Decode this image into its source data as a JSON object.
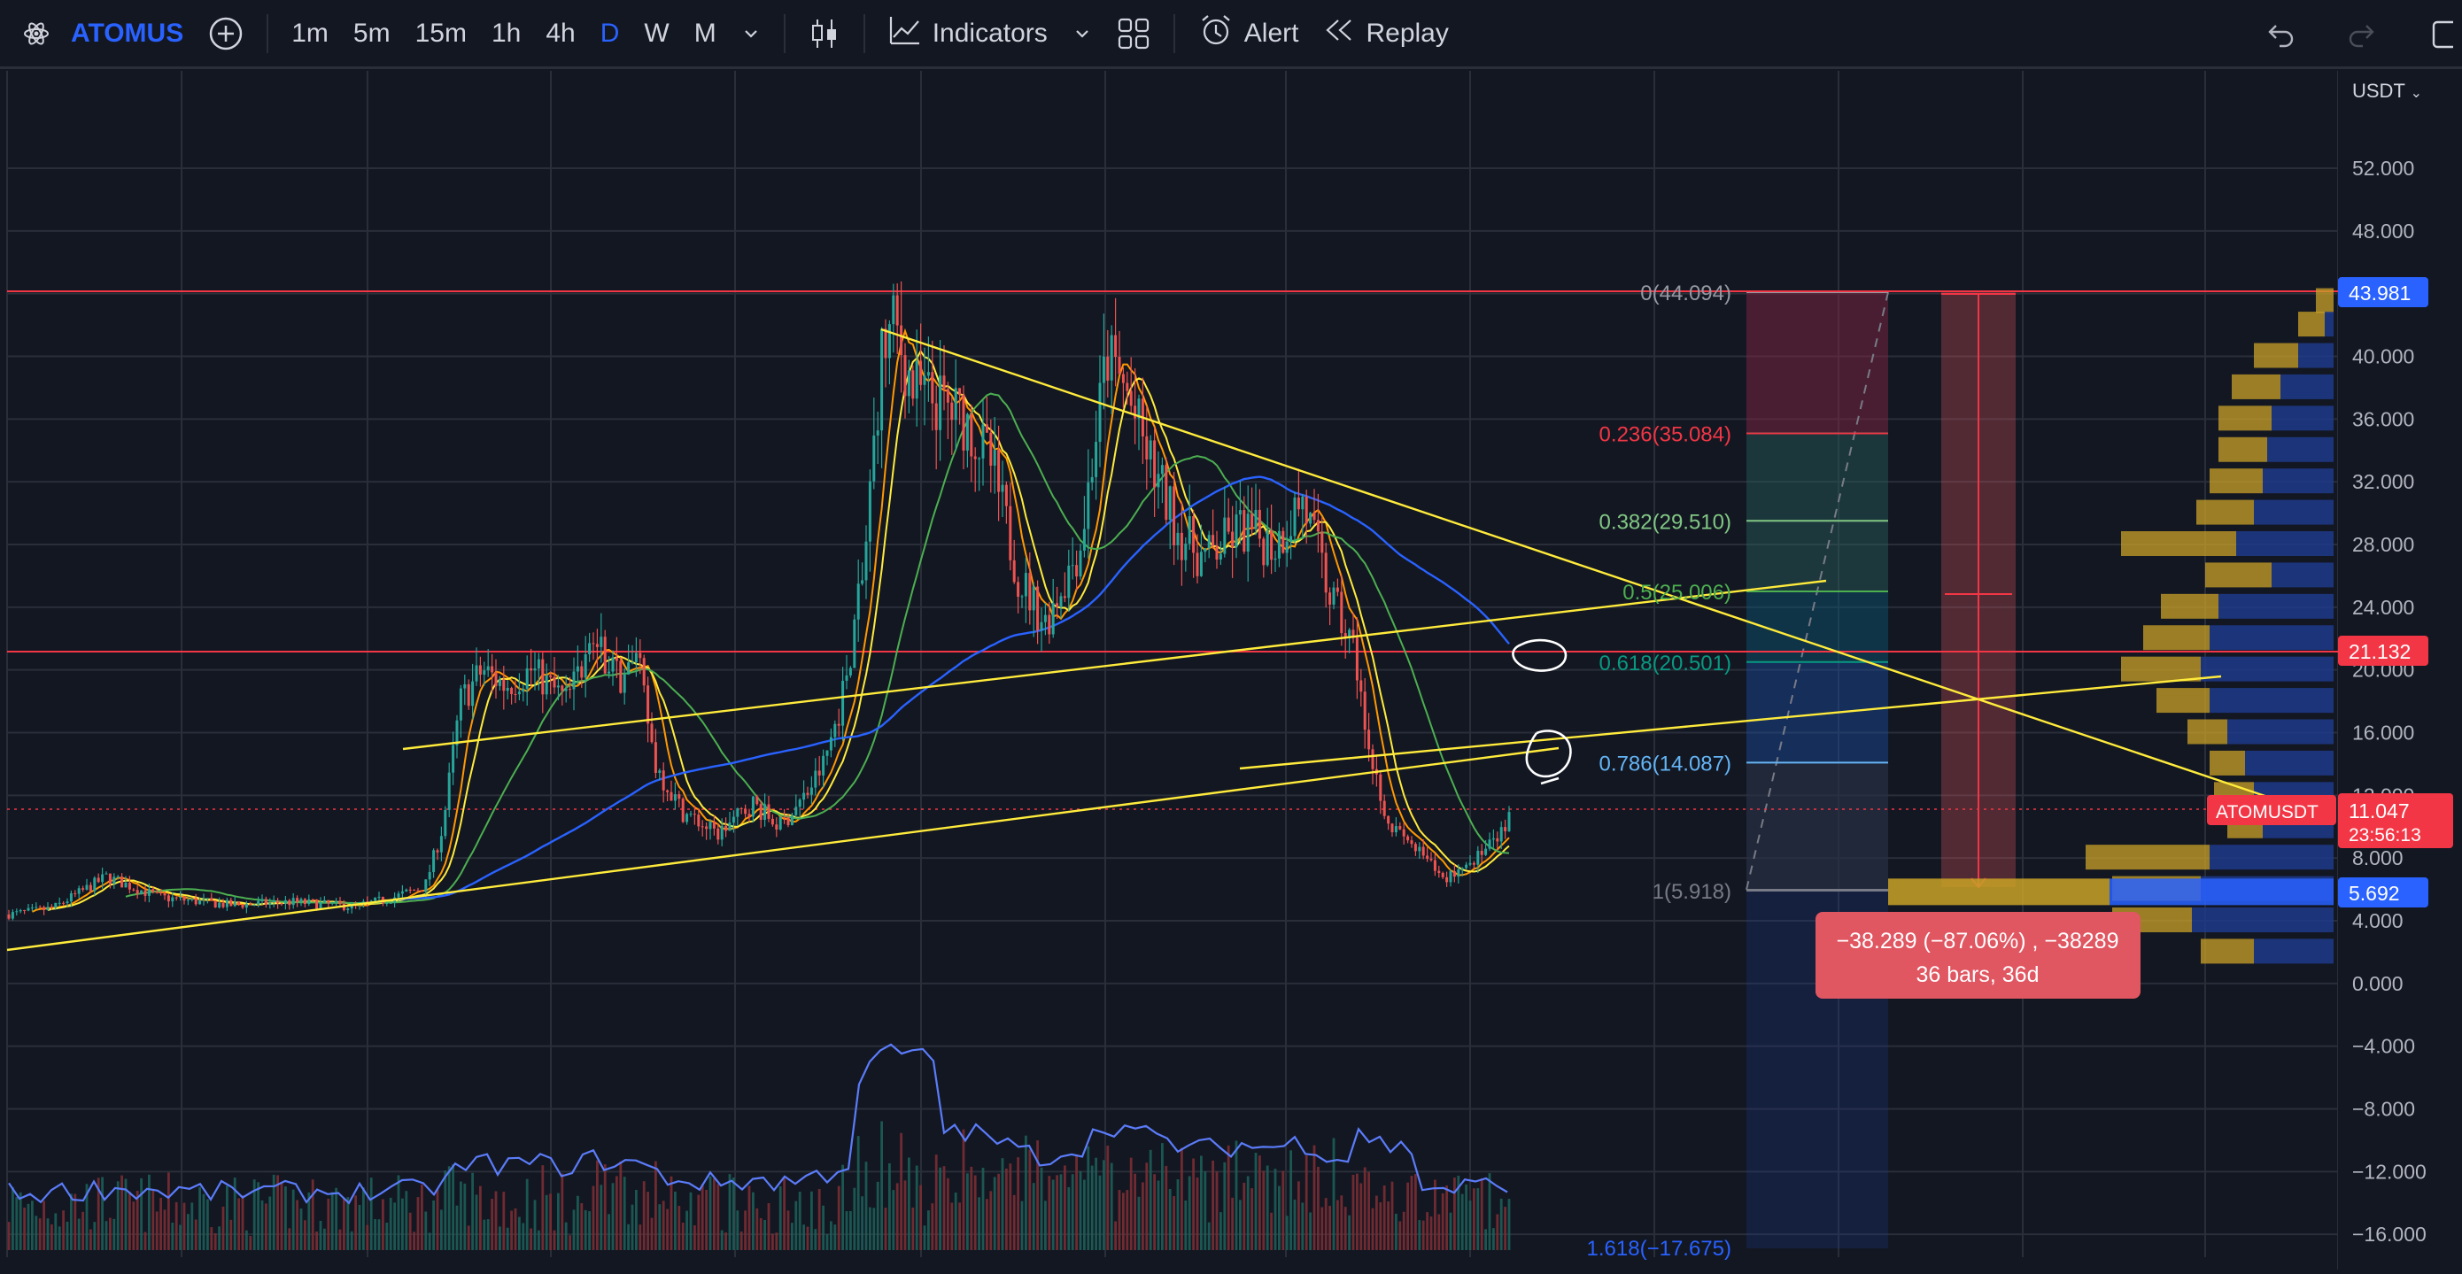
{
  "toolbar": {
    "symbol": "ATOMUS",
    "timeframes": [
      "1m",
      "5m",
      "15m",
      "1h",
      "4h",
      "D",
      "W",
      "M"
    ],
    "active_timeframe": "D",
    "indicators_label": "Indicators",
    "alert_label": "Alert",
    "replay_label": "Replay"
  },
  "price_axis": {
    "currency": "USDT",
    "ticks": [
      "52.000",
      "48.000",
      "40.000",
      "36.000",
      "32.000",
      "28.000",
      "24.000",
      "20.000",
      "16.000",
      "12.000",
      "8.000",
      "4.000",
      "0.000",
      "−4.000",
      "−8.000",
      "−12.000",
      "−16.000"
    ],
    "labels": {
      "top": "43.981",
      "mid": "21.132",
      "last": "11.047",
      "countdown": "23:56:13",
      "symbol_tag": "ATOMUSDT",
      "low": "5.692"
    }
  },
  "fib": [
    {
      "label": "0(44.094)",
      "color": "#9598a1"
    },
    {
      "label": "0.236(35.084)",
      "color": "#f23645"
    },
    {
      "label": "0.382(29.510)",
      "color": "#81c784"
    },
    {
      "label": "0.5(25.006)",
      "color": "#4caf50"
    },
    {
      "label": "0.618(20.501)",
      "color": "#089981"
    },
    {
      "label": "0.786(14.087)",
      "color": "#64b5f6"
    },
    {
      "label": "1(5.918)",
      "color": "#787b86"
    },
    {
      "label": "1.618(−17.675)",
      "color": "#2962ff"
    }
  ],
  "measure": {
    "line1": "−38.289 (−87.06%) , −38289",
    "line2": "36 bars, 36d"
  },
  "colors": {
    "background": "#131722",
    "grid": "#2a2e39",
    "accent": "#2962ff",
    "red_line": "#f23645",
    "trend_line": "#ffeb3b",
    "ma_blue": "#2962ff",
    "ma_green": "#4caf50",
    "ma_yellow": "#ffeb3b",
    "ma_orange": "#ff9800"
  },
  "icons": [
    "atom-icon",
    "add-icon",
    "chevron-down-icon",
    "candles-icon",
    "indicators-icon",
    "layout-icon",
    "alert-icon",
    "replay-icon",
    "undo-icon",
    "redo-icon"
  ]
}
